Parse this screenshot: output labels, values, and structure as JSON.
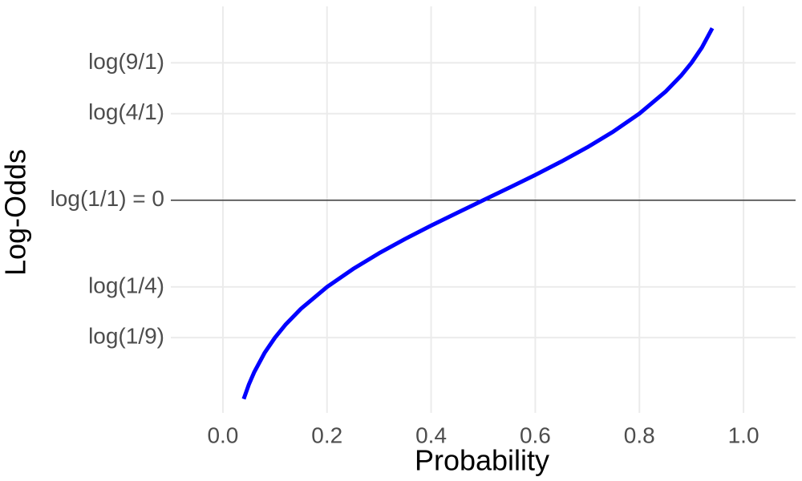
{
  "chart_data": {
    "type": "line",
    "x_label": "Probability",
    "y_label": "Log-Odds",
    "x": [
      0.04,
      0.05,
      0.06,
      0.08,
      0.1,
      0.12,
      0.15,
      0.2,
      0.25,
      0.3,
      0.35,
      0.4,
      0.45,
      0.5,
      0.55,
      0.6,
      0.65,
      0.7,
      0.75,
      0.8,
      0.85,
      0.88,
      0.9,
      0.92,
      0.94
    ],
    "series": [
      {
        "color": "#0000ff",
        "values": [
          -3.178,
          -2.944,
          -2.752,
          -2.442,
          -2.197,
          -1.992,
          -1.735,
          -1.386,
          -1.099,
          -0.847,
          -0.619,
          -0.405,
          -0.201,
          0,
          0.201,
          0.405,
          0.619,
          0.847,
          1.099,
          1.386,
          1.735,
          1.992,
          2.197,
          2.442,
          2.752
        ]
      }
    ],
    "xlim": [
      -0.1,
      1.1
    ],
    "ylim": [
      -3.4,
      3.1
    ],
    "xticks": [
      {
        "value": 0,
        "label": "0.0"
      },
      0.2,
      0.4,
      0.6,
      0.8,
      {
        "value": 1,
        "label": "1.0"
      }
    ],
    "yticks": [
      {
        "value": 2.197,
        "label": "log(9/1)"
      },
      {
        "value": 1.386,
        "label": "log(4/1)"
      },
      {
        "value": 0,
        "label": "log(1/1) = 0"
      },
      {
        "value": -1.386,
        "label": "log(1/4)"
      },
      {
        "value": -2.197,
        "label": "log(1/9)"
      }
    ],
    "hline": 0,
    "grid": true
  }
}
